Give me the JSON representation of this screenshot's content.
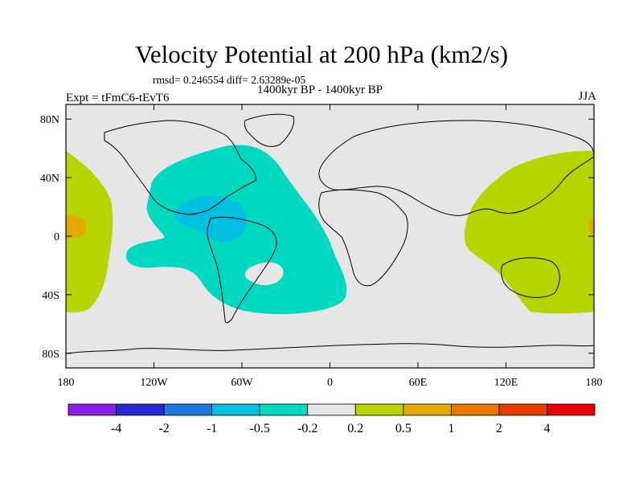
{
  "title": "Velocity Potential at 200 hPa (km2/s)",
  "stats_line": "rmsd= 0.246554 diff= 2.63289e-05",
  "left_subtitle": "Expt = tFmC6-tEvT6",
  "center_subtitle": "1400kyr BP - 1400kyr BP",
  "right_subtitle": "JJA",
  "map": {
    "projection": "cylindrical equidistant",
    "lon_range": [
      -180,
      180
    ],
    "lat_range": [
      -90,
      90
    ],
    "y_ticks": [
      {
        "value": 80,
        "label": "80N"
      },
      {
        "value": 40,
        "label": "40N"
      },
      {
        "value": 0,
        "label": "0"
      },
      {
        "value": -40,
        "label": "40S"
      },
      {
        "value": -80,
        "label": "80S"
      }
    ],
    "x_ticks": [
      {
        "value": -180,
        "label": "180"
      },
      {
        "value": -120,
        "label": "120W"
      },
      {
        "value": -60,
        "label": "60W"
      },
      {
        "value": 0,
        "label": "0"
      },
      {
        "value": 60,
        "label": "60E"
      },
      {
        "value": 120,
        "label": "120E"
      },
      {
        "value": 180,
        "label": "180"
      }
    ],
    "background_color": "#e6e6e6",
    "field_regions": [
      {
        "name": "negative-atlantic-americas",
        "level": "-0.5 to -0.2",
        "color": "#00d9c0"
      },
      {
        "name": "negative-caribbean-core",
        "level": "-1 to -0.5",
        "color": "#00bfe0"
      },
      {
        "name": "positive-west-pacific",
        "level": "0.2 to 0.5",
        "color": "#b8d400"
      },
      {
        "name": "positive-central-pacific",
        "level": "0.2 to 0.5",
        "color": "#b8d400"
      },
      {
        "name": "positive-central-pacific-core",
        "level": "0.5 to 1",
        "color": "#e3aa00"
      },
      {
        "name": "positive-far-east-core",
        "level": "0.5 to 1",
        "color": "#e3aa00"
      }
    ]
  },
  "colorbar": {
    "colors": [
      "#8a1ee6",
      "#2828d2",
      "#1e78dc",
      "#00bfe0",
      "#00d9c0",
      "#e6e6e6",
      "#b8d400",
      "#e3aa00",
      "#e87800",
      "#e63c00",
      "#e60000"
    ],
    "labels": [
      "-4",
      "-2",
      "-1",
      "-0.5",
      "-0.2",
      "0.2",
      "0.5",
      "1",
      "2",
      "4"
    ]
  }
}
